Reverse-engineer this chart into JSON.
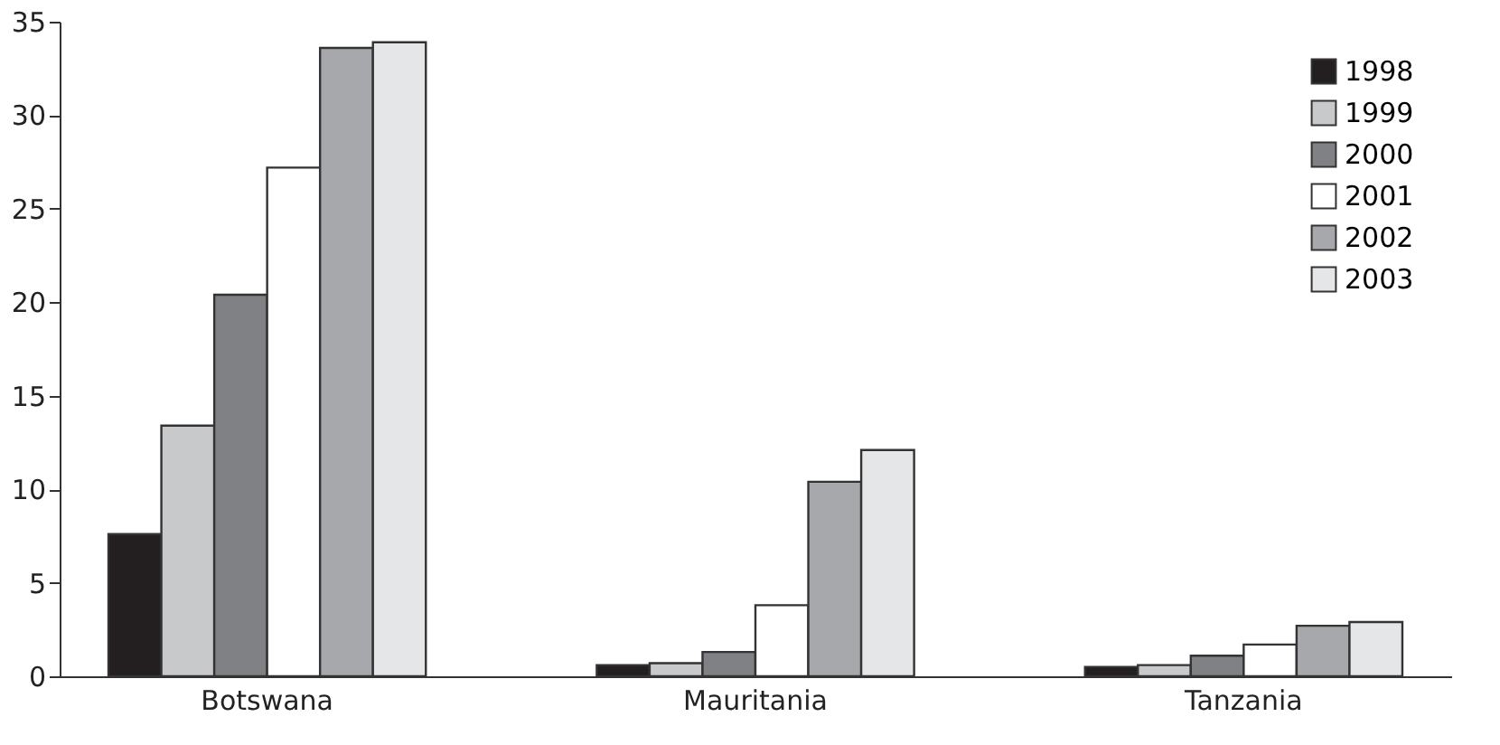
{
  "chart_data": {
    "type": "bar",
    "categories": [
      "Botswana",
      "Mauritania",
      "Tanzania"
    ],
    "series": [
      {
        "name": "1998",
        "color": "#231f20",
        "values": [
          7.6,
          0.6,
          0.5
        ]
      },
      {
        "name": "1999",
        "color": "#c8c9cb",
        "values": [
          13.4,
          0.7,
          0.6
        ]
      },
      {
        "name": "2000",
        "color": "#808184",
        "values": [
          20.4,
          1.3,
          1.1
        ]
      },
      {
        "name": "2001",
        "color": "#ffffff",
        "values": [
          27.2,
          3.8,
          1.7
        ]
      },
      {
        "name": "2002",
        "color": "#a7a8ab",
        "values": [
          33.6,
          10.4,
          2.7
        ]
      },
      {
        "name": "2003",
        "color": "#e5e6e8",
        "values": [
          33.9,
          12.1,
          2.9
        ]
      }
    ],
    "ylim": [
      0,
      35
    ],
    "yticks": [
      0,
      5,
      10,
      15,
      20,
      25,
      30,
      35
    ],
    "grid": false,
    "legend": "top right"
  }
}
